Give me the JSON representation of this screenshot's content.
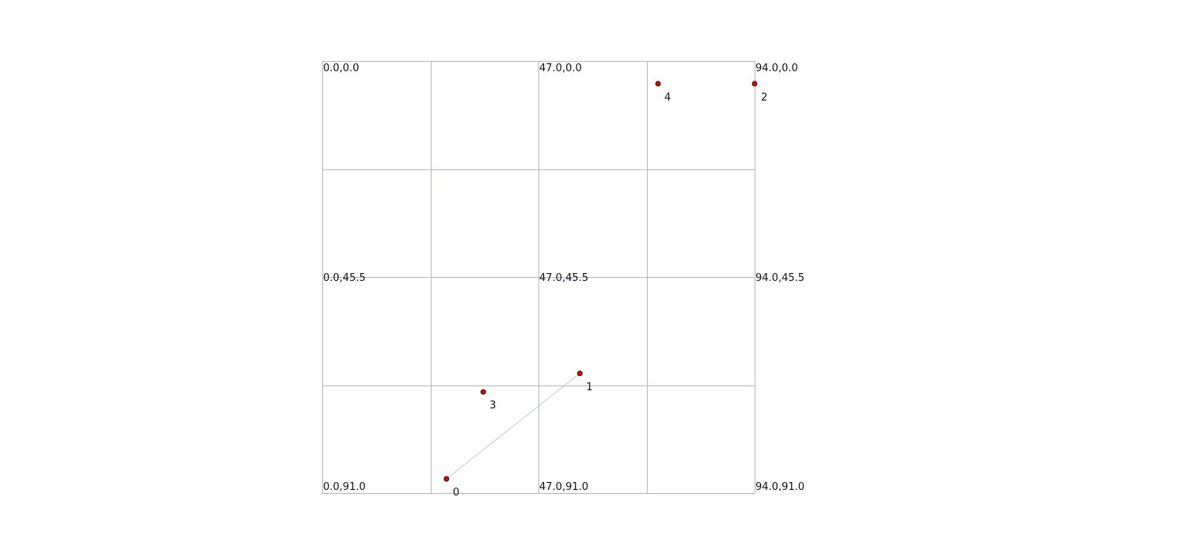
{
  "grid": {
    "x_range": [
      0.0,
      94.0
    ],
    "y_range": [
      0.0,
      91.0
    ],
    "columns": 4,
    "rows": 4,
    "y_axis_direction": "down",
    "line_color": "#b3b3d6"
  },
  "coordinate_labels": [
    {
      "text": "0.0,0.0"
    },
    {
      "text": "47.0,0.0"
    },
    {
      "text": "94.0,0.0"
    },
    {
      "text": "0.0,45.5"
    },
    {
      "text": "47.0,45.5"
    },
    {
      "text": "94.0,45.5"
    },
    {
      "text": "0.0,91.0"
    },
    {
      "text": "47.0,91.0"
    },
    {
      "text": "94.0,91.0"
    }
  ],
  "points": [
    {
      "id": "0",
      "x": 27.0,
      "y": 88.0
    },
    {
      "id": "1",
      "x": 56.0,
      "y": 65.8
    },
    {
      "id": "2",
      "x": 94.0,
      "y": 4.8
    },
    {
      "id": "3",
      "x": 35.0,
      "y": 69.7
    },
    {
      "id": "4",
      "x": 73.0,
      "y": 4.8
    }
  ],
  "edges": [
    {
      "from": "0",
      "to": "1"
    }
  ],
  "colors": {
    "point_fill": "#e60000",
    "point_stroke": "#1a1a1a",
    "edge": "#c4c8d6",
    "text": "#111111"
  }
}
